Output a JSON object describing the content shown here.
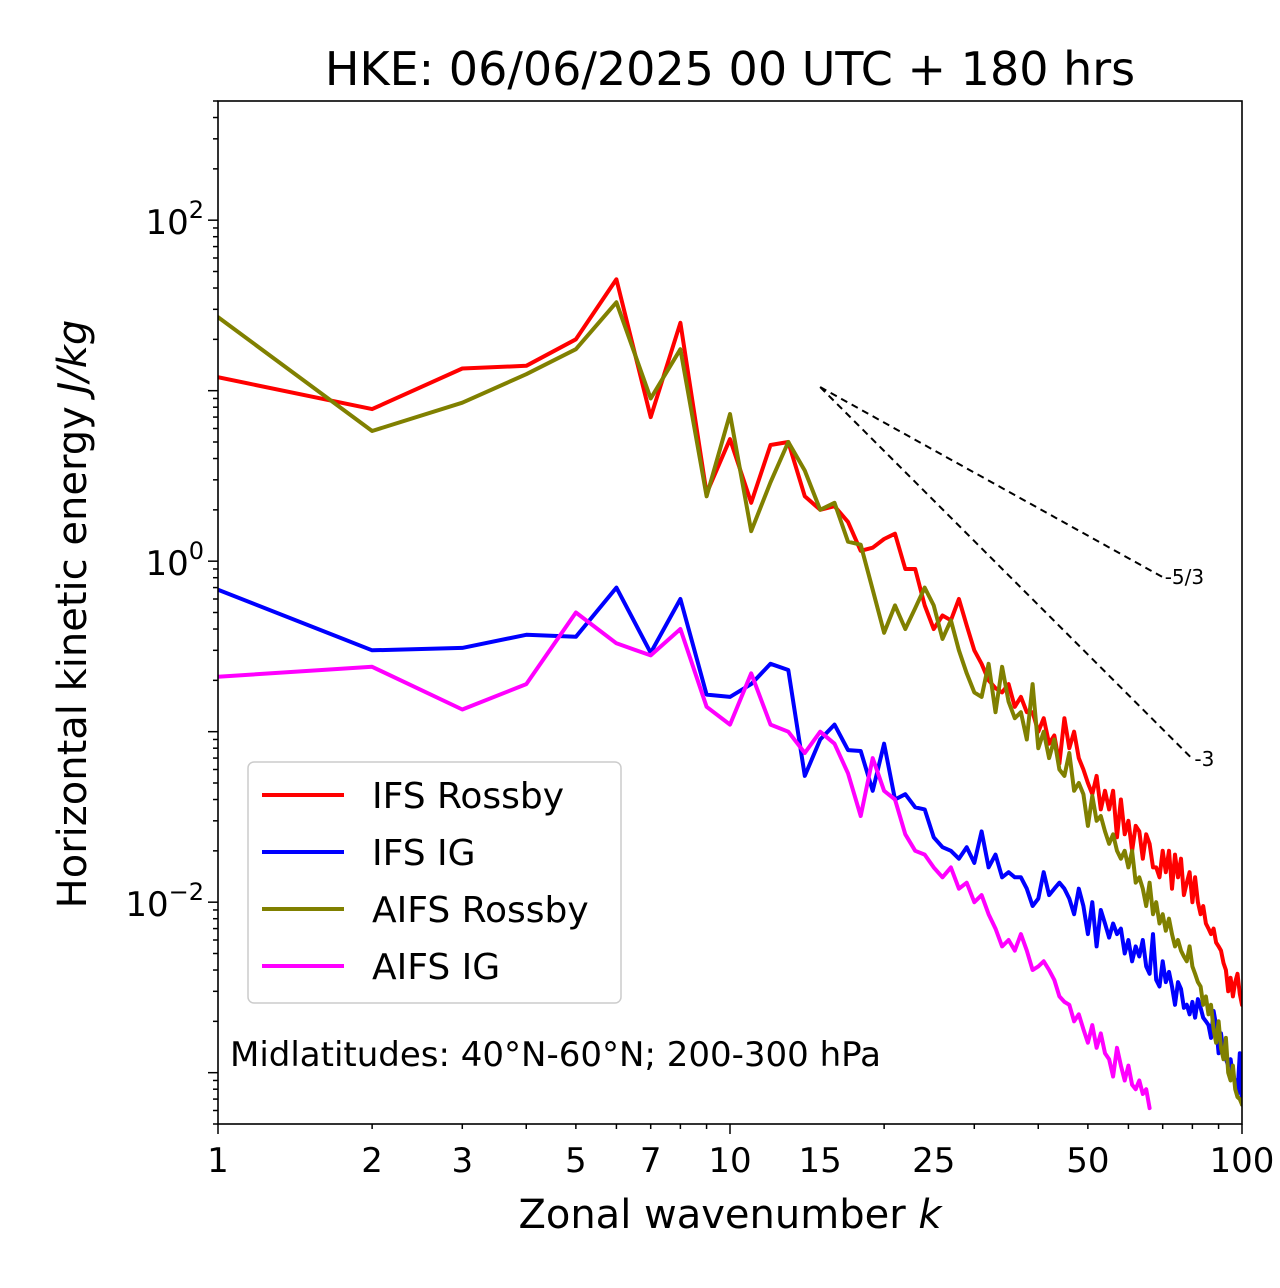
{
  "chart_data": {
    "type": "line",
    "title": "HKE: 06/06/2025 00 UTC + 180 hrs",
    "xlabel": "Zonal wavenumber",
    "xlabel_italic": "k",
    "ylabel": "Horizontal kinetic energy",
    "ylabel_italic": "J/kg",
    "x_scale": "log",
    "y_scale": "log",
    "xlim": [
      1,
      100
    ],
    "ylim": [
      0.0005,
      500
    ],
    "x_ticks": [
      1,
      2,
      3,
      5,
      7,
      10,
      15,
      25,
      50,
      100
    ],
    "x_tick_labels": [
      "1",
      "2",
      "3",
      "5",
      "7",
      "10",
      "15",
      "25",
      "50",
      "100"
    ],
    "y_ticks": [
      0.01,
      1,
      100
    ],
    "y_tick_labels": [
      {
        "base": "10",
        "exp": "−2"
      },
      {
        "base": "10",
        "exp": "0"
      },
      {
        "base": "10",
        "exp": "2"
      }
    ],
    "grid": false,
    "legend_position": "lower-left",
    "annotation": "Midlatitudes: 40°N-60°N; 200-300 hPa",
    "reference_lines": [
      {
        "label": "-5/3",
        "slope": -1.6667,
        "x_start": 15,
        "y_start": 10.5,
        "x_end": 70
      },
      {
        "label": "-3",
        "slope": -3,
        "x_start": 15,
        "y_start": 10.5,
        "x_end": 80
      }
    ],
    "series": [
      {
        "name": "IFS Rossby",
        "color": "#ff0000",
        "x": [
          1,
          2,
          3,
          4,
          5,
          6,
          7,
          8,
          9,
          10,
          11,
          12,
          13,
          14,
          15,
          16,
          17,
          18,
          19,
          20,
          21,
          22,
          23,
          24,
          25,
          26,
          27,
          28,
          29,
          30,
          31,
          32,
          33,
          34,
          35,
          36,
          37,
          38,
          39,
          40,
          41,
          42,
          43,
          44,
          45,
          46,
          47,
          48,
          49,
          50,
          51,
          52,
          53,
          54,
          55,
          56,
          57,
          58,
          59,
          60,
          61,
          62,
          63,
          64,
          65,
          66,
          67,
          68,
          69,
          70,
          71,
          72,
          73,
          74,
          75,
          76,
          77,
          78,
          79,
          80,
          81,
          82,
          83,
          84,
          85,
          86,
          87,
          88,
          89,
          90,
          91,
          92,
          93,
          94,
          95,
          96,
          97,
          98,
          99,
          100
        ],
        "y": [
          12,
          7.8,
          13.5,
          14,
          20,
          45,
          7,
          25,
          2.5,
          5.2,
          2.2,
          4.8,
          5,
          2.4,
          2,
          2.1,
          1.7,
          1.15,
          1.2,
          1.35,
          1.45,
          0.9,
          0.9,
          0.55,
          0.4,
          0.48,
          0.45,
          0.6,
          0.42,
          0.3,
          0.25,
          0.2,
          0.18,
          0.17,
          0.19,
          0.14,
          0.16,
          0.13,
          0.13,
          0.1,
          0.12,
          0.085,
          0.095,
          0.065,
          0.12,
          0.08,
          0.1,
          0.07,
          0.06,
          0.05,
          0.043,
          0.055,
          0.035,
          0.045,
          0.035,
          0.045,
          0.024,
          0.04,
          0.025,
          0.03,
          0.02,
          0.028,
          0.026,
          0.018,
          0.025,
          0.022,
          0.016,
          0.016,
          0.014,
          0.02,
          0.015,
          0.02,
          0.012,
          0.019,
          0.014,
          0.018,
          0.011,
          0.013,
          0.015,
          0.01,
          0.014,
          0.01,
          0.0085,
          0.0095,
          0.0075,
          0.007,
          0.0065,
          0.007,
          0.0058,
          0.0055,
          0.0052,
          0.0044,
          0.004,
          0.003,
          0.0036,
          0.0028,
          0.0034,
          0.0038,
          0.0029,
          0.0025
        ]
      },
      {
        "name": "IFS IG",
        "color": "#0000ff",
        "x": [
          1,
          2,
          3,
          4,
          5,
          6,
          7,
          8,
          9,
          10,
          11,
          12,
          13,
          14,
          15,
          16,
          17,
          18,
          19,
          20,
          21,
          22,
          23,
          24,
          25,
          26,
          27,
          28,
          29,
          30,
          31,
          32,
          33,
          34,
          35,
          36,
          37,
          38,
          39,
          40,
          41,
          42,
          43,
          44,
          45,
          46,
          47,
          48,
          49,
          50,
          51,
          52,
          53,
          54,
          55,
          56,
          57,
          58,
          59,
          60,
          61,
          62,
          63,
          64,
          65,
          66,
          67,
          68,
          69,
          70,
          71,
          72,
          73,
          74,
          75,
          76,
          77,
          78,
          79,
          80,
          81,
          82,
          83,
          84,
          85,
          86,
          87,
          88,
          89,
          90,
          91,
          92,
          93,
          94,
          95,
          96,
          97,
          98,
          99,
          100
        ],
        "y": [
          0.68,
          0.3,
          0.31,
          0.37,
          0.36,
          0.7,
          0.29,
          0.6,
          0.165,
          0.16,
          0.19,
          0.25,
          0.23,
          0.055,
          0.09,
          0.11,
          0.078,
          0.077,
          0.045,
          0.085,
          0.04,
          0.043,
          0.036,
          0.035,
          0.024,
          0.021,
          0.02,
          0.018,
          0.021,
          0.017,
          0.026,
          0.016,
          0.019,
          0.014,
          0.015,
          0.014,
          0.014,
          0.012,
          0.0095,
          0.0105,
          0.015,
          0.011,
          0.012,
          0.013,
          0.012,
          0.0105,
          0.0085,
          0.012,
          0.0095,
          0.0065,
          0.01,
          0.0055,
          0.009,
          0.0075,
          0.0062,
          0.0075,
          0.0065,
          0.007,
          0.005,
          0.006,
          0.0045,
          0.0055,
          0.0048,
          0.006,
          0.0042,
          0.0038,
          0.0065,
          0.0035,
          0.0032,
          0.0045,
          0.0034,
          0.0039,
          0.0032,
          0.0025,
          0.0034,
          0.0031,
          0.0024,
          0.0025,
          0.0022,
          0.0026,
          0.0021,
          0.0027,
          0.0024,
          0.0021,
          0.002,
          0.0019,
          0.0016,
          0.0023,
          0.0019,
          0.0013,
          0.0017,
          0.0013,
          0.0012,
          0.0011,
          0.0012,
          0.00095,
          0.0009,
          0.00075,
          0.0013,
          0.00065
        ]
      },
      {
        "name": "AIFS Rossby",
        "color": "#808000",
        "x": [
          1,
          2,
          3,
          4,
          5,
          6,
          7,
          8,
          9,
          10,
          11,
          12,
          13,
          14,
          15,
          16,
          17,
          18,
          19,
          20,
          21,
          22,
          23,
          24,
          25,
          26,
          27,
          28,
          29,
          30,
          31,
          32,
          33,
          34,
          35,
          36,
          37,
          38,
          39,
          40,
          41,
          42,
          43,
          44,
          45,
          46,
          47,
          48,
          49,
          50,
          51,
          52,
          53,
          54,
          55,
          56,
          57,
          58,
          59,
          60,
          61,
          62,
          63,
          64,
          65,
          66,
          67,
          68,
          69,
          70,
          71,
          72,
          73,
          74,
          75,
          76,
          77,
          78,
          79,
          80,
          81,
          82,
          83,
          84,
          85,
          86,
          87,
          88,
          89,
          90,
          91,
          92,
          93,
          94,
          95,
          96,
          97,
          98,
          99,
          100
        ],
        "y": [
          27,
          5.8,
          8.5,
          12.5,
          17.5,
          33,
          9,
          17.5,
          2.4,
          7.3,
          1.5,
          2.9,
          5,
          3.4,
          2,
          2.2,
          1.3,
          1.25,
          0.68,
          0.38,
          0.55,
          0.4,
          0.53,
          0.7,
          0.55,
          0.35,
          0.45,
          0.3,
          0.22,
          0.17,
          0.16,
          0.25,
          0.13,
          0.24,
          0.15,
          0.12,
          0.13,
          0.09,
          0.19,
          0.08,
          0.1,
          0.07,
          0.09,
          0.06,
          0.055,
          0.075,
          0.045,
          0.05,
          0.043,
          0.028,
          0.042,
          0.03,
          0.032,
          0.026,
          0.022,
          0.025,
          0.02,
          0.018,
          0.02,
          0.016,
          0.02,
          0.013,
          0.014,
          0.012,
          0.0095,
          0.013,
          0.0085,
          0.01,
          0.0075,
          0.0085,
          0.0068,
          0.008,
          0.0065,
          0.0055,
          0.006,
          0.0052,
          0.0048,
          0.0045,
          0.0055,
          0.0042,
          0.0038,
          0.0034,
          0.0032,
          0.0025,
          0.0028,
          0.0022,
          0.0025,
          0.0018,
          0.0015,
          0.002,
          0.0014,
          0.0012,
          0.0016,
          0.001,
          0.0009,
          0.0011,
          0.0008,
          0.00072,
          0.0007,
          0.00065
        ]
      },
      {
        "name": "AIFS IG",
        "color": "#ff00ff",
        "x": [
          1,
          2,
          3,
          4,
          5,
          6,
          7,
          8,
          9,
          10,
          11,
          12,
          13,
          14,
          15,
          16,
          17,
          18,
          19,
          20,
          21,
          22,
          23,
          24,
          25,
          26,
          27,
          28,
          29,
          30,
          31,
          32,
          33,
          34,
          35,
          36,
          37,
          38,
          39,
          40,
          41,
          42,
          43,
          44,
          45,
          46,
          47,
          48,
          49,
          50,
          51,
          52,
          53,
          54,
          55,
          56,
          57,
          58,
          59,
          60,
          61,
          62,
          63,
          64,
          65,
          66
        ],
        "y": [
          0.21,
          0.24,
          0.135,
          0.19,
          0.5,
          0.33,
          0.28,
          0.4,
          0.14,
          0.11,
          0.22,
          0.11,
          0.1,
          0.075,
          0.1,
          0.085,
          0.057,
          0.032,
          0.07,
          0.045,
          0.04,
          0.025,
          0.02,
          0.019,
          0.016,
          0.014,
          0.016,
          0.012,
          0.013,
          0.01,
          0.011,
          0.0085,
          0.007,
          0.0055,
          0.006,
          0.0052,
          0.0065,
          0.0052,
          0.004,
          0.0042,
          0.0045,
          0.004,
          0.0035,
          0.0028,
          0.0026,
          0.0025,
          0.002,
          0.0022,
          0.0018,
          0.0015,
          0.0019,
          0.0014,
          0.0017,
          0.0013,
          0.0012,
          0.00095,
          0.0014,
          0.0011,
          0.0009,
          0.0011,
          0.00085,
          0.0008,
          0.0009,
          0.00075,
          0.0008,
          0.00062
        ]
      }
    ]
  }
}
